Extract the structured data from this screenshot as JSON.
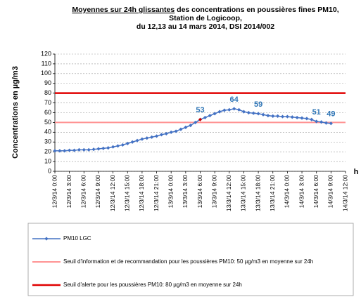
{
  "chart_data": {
    "type": "line",
    "title_lines": [
      [
        "Moyennes sur 24h glissantes",
        " des concentrations en poussières fines PM10,"
      ],
      [
        "Station de Logicoop,"
      ],
      [
        "du 12,13 au 14 mars 2014, DSI 2014/002"
      ]
    ],
    "y_label": "Concentrations en µg/m3",
    "x_label": "h",
    "categories": [
      "12/3/14 0:00",
      null,
      null,
      "12/3/14 3:00",
      null,
      null,
      "12/3/14 6:00",
      null,
      null,
      "12/3/14 9:00",
      null,
      null,
      "12/3/14 12:00",
      null,
      null,
      "12/3/14 15:00",
      null,
      null,
      "12/3/14 18:00",
      null,
      null,
      "12/3/14 21:00",
      null,
      null,
      "13/3/14 0:00",
      null,
      null,
      "13/3/14 3:00",
      null,
      null,
      "13/3/14 6:00",
      null,
      null,
      "13/3/14 9:00",
      null,
      null,
      "13/3/14 12:00",
      null,
      null,
      "13/3/14 15:00",
      null,
      null,
      "13/3/14 18:00",
      null,
      null,
      "13/3/14 21:00",
      null,
      null,
      "14/3/14 0:00",
      null,
      null,
      "14/3/14 3:00",
      null,
      null,
      "14/3/14 6:00",
      null,
      null,
      "14/3/14 9:00",
      null,
      null,
      "14/3/14 12:00"
    ],
    "series": [
      {
        "name": "PM10 LGC",
        "color": "#4472c4",
        "values": [
          21,
          21,
          21,
          21.5,
          21.5,
          22,
          22,
          22,
          22.5,
          23,
          23.5,
          24,
          25,
          26,
          27,
          28.5,
          30,
          31.5,
          33,
          34,
          35,
          36,
          37.5,
          38.5,
          40,
          41,
          43,
          45,
          47,
          50,
          53,
          55,
          57,
          59,
          61,
          62.5,
          63,
          64,
          63,
          61,
          60,
          59.5,
          59,
          58,
          57,
          56.5,
          56.5,
          56,
          56,
          55.5,
          55,
          54.5,
          54,
          53,
          51,
          50.5,
          49.5,
          49,
          null,
          null,
          null
        ],
        "value_labels": [
          null,
          null,
          null,
          null,
          null,
          null,
          null,
          null,
          null,
          null,
          null,
          null,
          null,
          null,
          null,
          null,
          null,
          null,
          null,
          null,
          null,
          null,
          null,
          null,
          null,
          null,
          null,
          null,
          null,
          null,
          53,
          null,
          null,
          null,
          null,
          null,
          null,
          64,
          null,
          null,
          null,
          null,
          59,
          null,
          null,
          null,
          null,
          null,
          null,
          null,
          null,
          null,
          null,
          null,
          51,
          null,
          null,
          49,
          null,
          null,
          null
        ],
        "highlight": {
          "index": 30,
          "color": "#c00000"
        }
      }
    ],
    "reference_lines": [
      {
        "name": "Seuil d'information et de recommandation pour les poussières PM10: 50 µg/m3 en moyenne sur 24h",
        "value": 50,
        "color": "#ff9393"
      },
      {
        "name": "Seuil d'alerte pour les poussières PM10: 80 µg/m3 en moyenne sur 24h",
        "value": 80,
        "color": "#e00000"
      }
    ],
    "ylim": [
      0,
      120
    ],
    "yticks": [
      0,
      10,
      20,
      30,
      40,
      50,
      60,
      70,
      80,
      90,
      100,
      110,
      120
    ],
    "grid": true,
    "legend": "bottom"
  }
}
